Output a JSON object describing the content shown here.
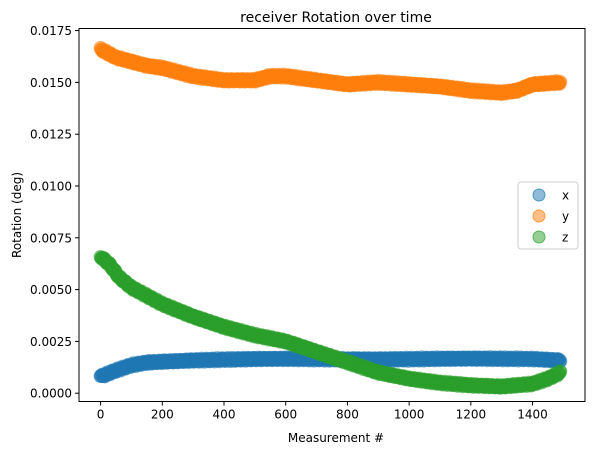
{
  "chart_data": {
    "type": "scatter",
    "title": "receiver Rotation over time",
    "xlabel": "Measurement #",
    "ylabel": "Rotation (deg)",
    "xlim": [
      -70,
      1570
    ],
    "ylim": [
      -0.0004,
      0.0176
    ],
    "xticks": [
      0,
      200,
      400,
      600,
      800,
      1000,
      1200,
      1400
    ],
    "xtick_labels": [
      "0",
      "200",
      "400",
      "600",
      "800",
      "1000",
      "1200",
      "1400"
    ],
    "yticks": [
      0.0,
      0.0025,
      0.005,
      0.0075,
      0.01,
      0.0125,
      0.015,
      0.0175
    ],
    "ytick_labels": [
      "0.0000",
      "0.0025",
      "0.0050",
      "0.0075",
      "0.0100",
      "0.0125",
      "0.0150",
      "0.0175"
    ],
    "grid": false,
    "legend_position": "center-right",
    "x_range": [
      0,
      1490
    ],
    "series": [
      {
        "name": "x",
        "color": "#1f77b4",
        "x": [
          0,
          50,
          100,
          150,
          200,
          300,
          400,
          500,
          600,
          700,
          800,
          900,
          1000,
          1100,
          1200,
          1300,
          1400,
          1490
        ],
        "y": [
          0.0008,
          0.0011,
          0.00135,
          0.00148,
          0.00152,
          0.00158,
          0.00162,
          0.00165,
          0.00166,
          0.00165,
          0.00163,
          0.00163,
          0.00164,
          0.00166,
          0.00167,
          0.00166,
          0.00165,
          0.00158
        ]
      },
      {
        "name": "y",
        "color": "#ff7f0e",
        "x": [
          0,
          50,
          100,
          150,
          200,
          300,
          400,
          500,
          550,
          600,
          700,
          800,
          900,
          1000,
          1100,
          1200,
          1300,
          1350,
          1400,
          1490
        ],
        "y": [
          0.0166,
          0.0162,
          0.016,
          0.0158,
          0.0157,
          0.0153,
          0.0151,
          0.0151,
          0.0153,
          0.0153,
          0.0151,
          0.0149,
          0.015,
          0.0149,
          0.0148,
          0.0146,
          0.0145,
          0.0146,
          0.0149,
          0.015
        ]
      },
      {
        "name": "z",
        "color": "#2ca02c",
        "x": [
          0,
          30,
          60,
          100,
          150,
          200,
          300,
          400,
          500,
          600,
          700,
          800,
          900,
          1000,
          1100,
          1200,
          1300,
          1400,
          1450,
          1490
        ],
        "y": [
          0.0066,
          0.0062,
          0.0056,
          0.0051,
          0.0047,
          0.0043,
          0.0037,
          0.0032,
          0.0028,
          0.0025,
          0.002,
          0.0015,
          0.001,
          0.0007,
          0.0005,
          0.00038,
          0.00032,
          0.00045,
          0.0007,
          0.001
        ]
      }
    ]
  }
}
